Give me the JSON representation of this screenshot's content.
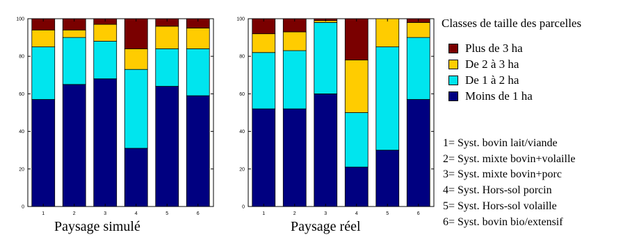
{
  "chart_data": [
    {
      "type": "bar",
      "stacked": true,
      "title": "Paysage simulé",
      "categories": [
        "1",
        "2",
        "3",
        "4",
        "5",
        "6"
      ],
      "yticks": [
        "0",
        "20",
        "40",
        "60",
        "80",
        "100"
      ],
      "ylim": [
        0,
        100
      ],
      "series": [
        {
          "name": "Moins de 1 ha",
          "color": "#000080",
          "values": [
            57,
            65,
            68,
            31,
            64,
            59
          ]
        },
        {
          "name": "De 1 à 2 ha",
          "color": "#00E5EE",
          "values": [
            28,
            25,
            20,
            42,
            20,
            25
          ]
        },
        {
          "name": "De 2 à 3 ha",
          "color": "#FFCC00",
          "values": [
            9,
            4,
            9,
            11,
            12,
            11
          ]
        },
        {
          "name": "Plus de 3 ha",
          "color": "#7A0000",
          "values": [
            6,
            6,
            3,
            16,
            4,
            5
          ]
        }
      ]
    },
    {
      "type": "bar",
      "stacked": true,
      "title": "Paysage réel",
      "categories": [
        "1",
        "2",
        "3",
        "4",
        "5",
        "6"
      ],
      "yticks": [
        "0",
        "20",
        "40",
        "60",
        "80",
        "100"
      ],
      "ylim": [
        0,
        100
      ],
      "series": [
        {
          "name": "Moins de 1 ha",
          "color": "#000080",
          "values": [
            52,
            52,
            60,
            21,
            30,
            57
          ]
        },
        {
          "name": "De 1 à 2 ha",
          "color": "#00E5EE",
          "values": [
            30,
            31,
            38,
            29,
            55,
            33
          ]
        },
        {
          "name": "De 2 à 3 ha",
          "color": "#FFCC00",
          "values": [
            10,
            10,
            1,
            28,
            15,
            8
          ]
        },
        {
          "name": "Plus de 3 ha",
          "color": "#7A0000",
          "values": [
            8,
            7,
            1,
            22,
            0,
            2
          ]
        }
      ]
    }
  ],
  "legend": {
    "title": "Classes de taille des parcelles",
    "items": [
      {
        "label": "Plus de 3 ha",
        "color": "#7A0000"
      },
      {
        "label": "De 2 à 3 ha",
        "color": "#FFCC00"
      },
      {
        "label": "De 1 à 2 ha",
        "color": "#00E5EE"
      },
      {
        "label": "Moins de 1 ha",
        "color": "#000080"
      }
    ]
  },
  "systems": [
    "1= Syst. bovin lait/viande",
    "2= Syst. mixte bovin+volaille",
    "3= Syst. mixte bovin+porc",
    "4= Syst. Hors-sol porcin",
    "5= Syst. Hors-sol volaille",
    "6= Syst. bovin bio/extensif"
  ]
}
